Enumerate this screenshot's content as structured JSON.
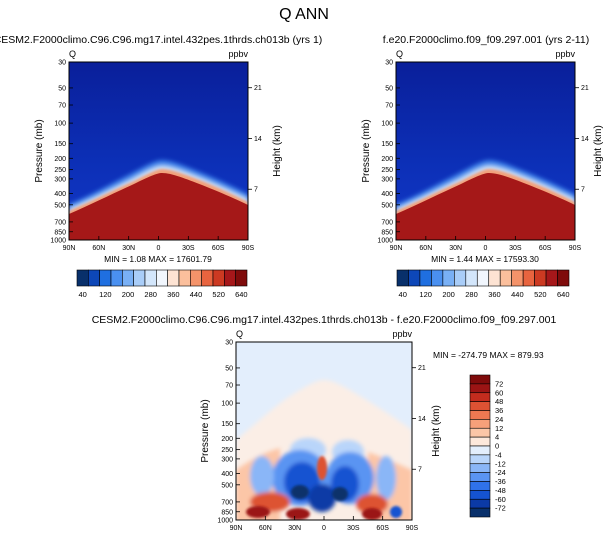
{
  "figure": {
    "title": "Q ANN"
  },
  "colors": {
    "top_colorbar": [
      "#08306b",
      "#0d47b8",
      "#1f6fe0",
      "#4a90f0",
      "#79b0f5",
      "#a9cdf8",
      "#d3e6fb",
      "#f1f6fd",
      "#fde3d3",
      "#fbbf9c",
      "#f4936a",
      "#e8643f",
      "#cc3a22",
      "#a6171a",
      "#7f0b0b"
    ],
    "diff_colorbar": [
      "#08306b",
      "#0b3aa6",
      "#1553d1",
      "#2f72ea",
      "#5a94f2",
      "#8ab6f7",
      "#b9d5fa",
      "#e3eefc",
      "#fde8db",
      "#fcc6a7",
      "#f6a07a",
      "#ed7852",
      "#dd5233",
      "#c32c1e",
      "#9b1414",
      "#7f0b0b"
    ]
  },
  "chart_data": [
    {
      "type": "heatmap",
      "title": "CESM2.F2000climo.C96.C96.mg17.intel.432pes.1thrds.ch013b (yrs 1)",
      "left_label": "Q",
      "right_label": "ppbv",
      "ylabel": "Pressure (mb)",
      "ylabel_right": "Height (km)",
      "x_ticks": [
        "90N",
        "60N",
        "30N",
        "0",
        "30S",
        "60S",
        "90S"
      ],
      "y_ticks": [
        "30",
        "50",
        "70",
        "100",
        "150",
        "200",
        "250",
        "300",
        "400",
        "500",
        "700",
        "850",
        "1000"
      ],
      "y_ticks_right": [
        "21",
        "14",
        "7"
      ],
      "stats": "MIN =   1.08   MAX = 17601.79",
      "colorbar_labels": [
        "40",
        "120",
        "200",
        "280",
        "360",
        "440",
        "520",
        "640"
      ]
    },
    {
      "type": "heatmap",
      "title": "f.e20.F2000climo.f09_f09.297.001 (yrs 2-11)",
      "left_label": "Q",
      "right_label": "ppbv",
      "ylabel": "Pressure (mb)",
      "ylabel_right": "Height (km)",
      "x_ticks": [
        "90N",
        "60N",
        "30N",
        "0",
        "30S",
        "60S",
        "90S"
      ],
      "y_ticks": [
        "30",
        "50",
        "70",
        "100",
        "150",
        "200",
        "250",
        "300",
        "400",
        "500",
        "700",
        "850",
        "1000"
      ],
      "y_ticks_right": [
        "21",
        "14",
        "7"
      ],
      "stats": "MIN =   1.44   MAX = 17593.30",
      "colorbar_labels": [
        "40",
        "120",
        "200",
        "280",
        "360",
        "440",
        "520",
        "640"
      ]
    },
    {
      "type": "heatmap",
      "title": "CESM2.F2000climo.C96.C96.mg17.intel.432pes.1thrds.ch013b - f.e20.F2000climo.f09_f09.297.001",
      "left_label": "Q",
      "right_label": "ppbv",
      "ylabel": "Pressure (mb)",
      "ylabel_right": "Height (km)",
      "x_ticks": [
        "90N",
        "60N",
        "30N",
        "0",
        "30S",
        "60S",
        "90S"
      ],
      "y_ticks": [
        "30",
        "50",
        "70",
        "100",
        "150",
        "200",
        "250",
        "300",
        "400",
        "500",
        "700",
        "850",
        "1000"
      ],
      "y_ticks_right": [
        "21",
        "14",
        "7"
      ],
      "stats": "MIN = -274.79   MAX = 879.93",
      "colorbar_labels": [
        "72",
        "60",
        "48",
        "36",
        "24",
        "12",
        "4",
        "0",
        "-4",
        "-12",
        "-24",
        "-36",
        "-48",
        "-60",
        "-72"
      ]
    }
  ]
}
